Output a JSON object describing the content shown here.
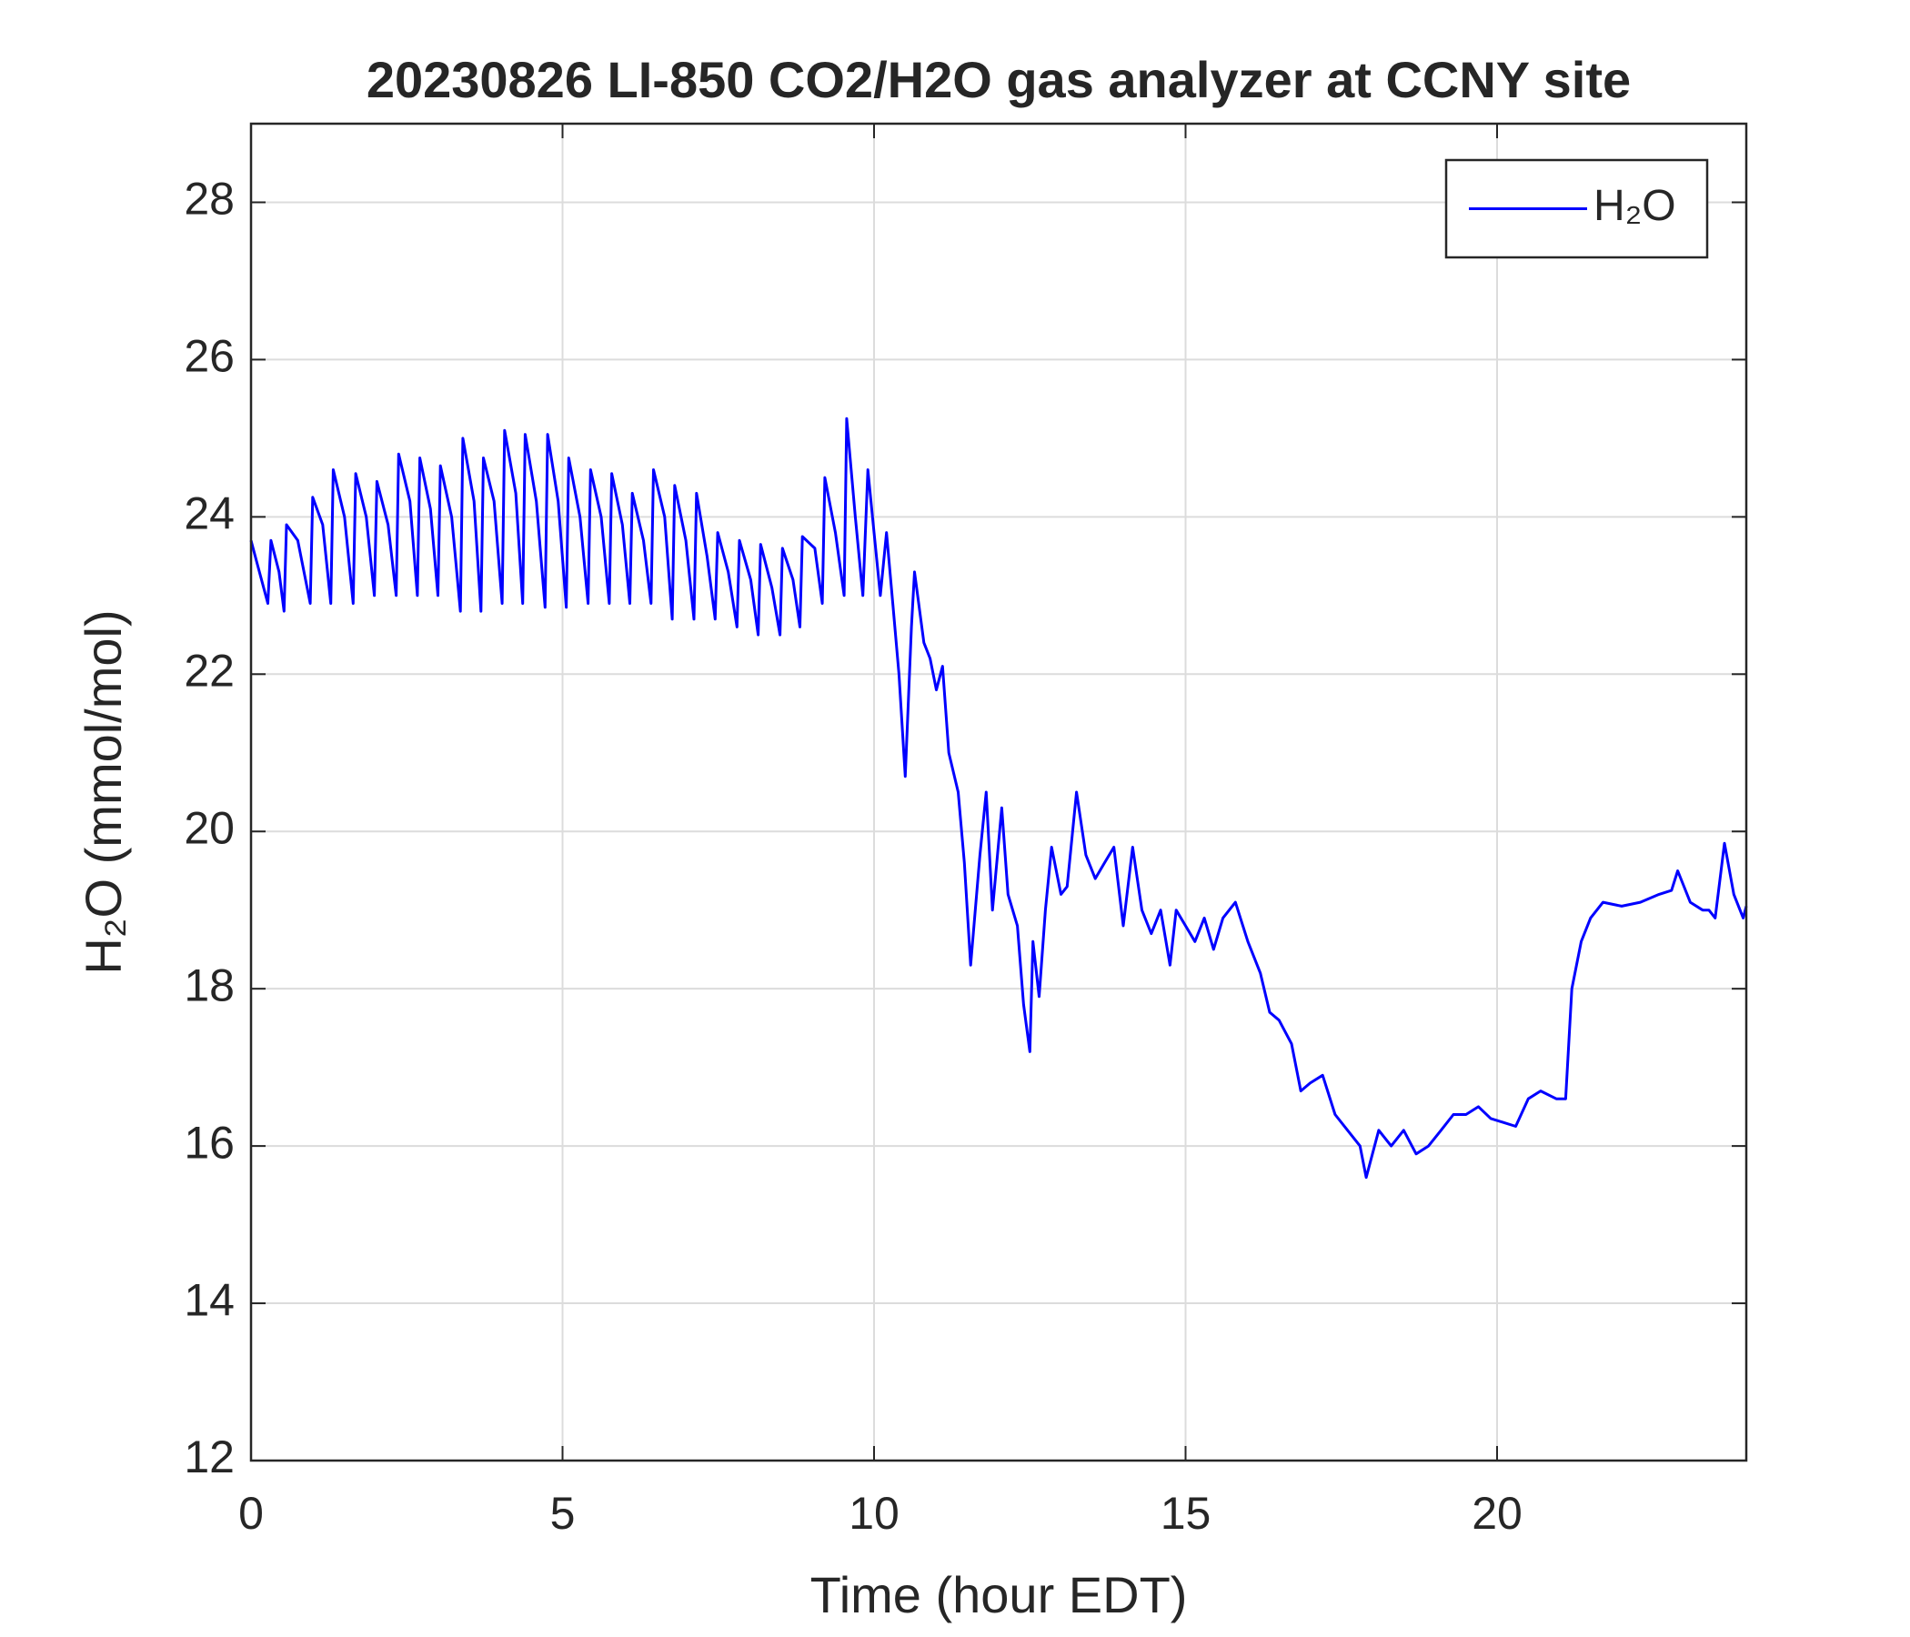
{
  "chart_data": {
    "type": "line",
    "title": "20230826 LI-850 CO2/H2O gas analyzer at CCNY site",
    "xlabel": "Time (hour EDT)",
    "ylabel": "H₂O (mmol/mol)",
    "xlim": [
      0,
      24
    ],
    "ylim": [
      12,
      29
    ],
    "xticks": [
      0,
      5,
      10,
      15,
      20
    ],
    "yticks": [
      12,
      14,
      16,
      18,
      20,
      22,
      24,
      26,
      28
    ],
    "grid": true,
    "legend": "upper right",
    "x": [
      0,
      0.1,
      0.27,
      0.32,
      0.45,
      0.53,
      0.57,
      0.75,
      0.95,
      0.99,
      1.15,
      1.28,
      1.32,
      1.5,
      1.64,
      1.68,
      1.85,
      1.98,
      2.02,
      2.2,
      2.33,
      2.37,
      2.55,
      2.67,
      2.71,
      2.88,
      3.0,
      3.04,
      3.22,
      3.36,
      3.4,
      3.58,
      3.69,
      3.73,
      3.9,
      4.03,
      4.07,
      4.25,
      4.36,
      4.4,
      4.58,
      4.72,
      4.76,
      4.93,
      5.06,
      5.1,
      5.28,
      5.41,
      5.45,
      5.62,
      5.75,
      5.79,
      5.96,
      6.08,
      6.12,
      6.3,
      6.42,
      6.46,
      6.64,
      6.76,
      6.8,
      6.98,
      7.11,
      7.15,
      7.32,
      7.45,
      7.49,
      7.66,
      7.8,
      7.84,
      8.02,
      8.14,
      8.18,
      8.36,
      8.49,
      8.53,
      8.7,
      8.81,
      8.85,
      9.05,
      9.17,
      9.21,
      9.38,
      9.52,
      9.56,
      9.7,
      9.82,
      9.9,
      10.0,
      10.1,
      10.2,
      10.3,
      10.4,
      10.5,
      10.6,
      10.65,
      10.8,
      10.9,
      11.0,
      11.1,
      11.2,
      11.35,
      11.45,
      11.55,
      11.7,
      11.8,
      11.9,
      12.05,
      12.15,
      12.3,
      12.4,
      12.5,
      12.55,
      12.65,
      12.75,
      12.85,
      13.0,
      13.1,
      13.25,
      13.4,
      13.55,
      13.7,
      13.85,
      14.0,
      14.15,
      14.3,
      14.45,
      14.6,
      14.75,
      14.85,
      15.0,
      15.15,
      15.3,
      15.45,
      15.6,
      15.8,
      16.0,
      16.2,
      16.35,
      16.5,
      16.7,
      16.85,
      17.0,
      17.2,
      17.4,
      17.6,
      17.8,
      17.9,
      18.1,
      18.3,
      18.5,
      18.7,
      18.9,
      19.1,
      19.3,
      19.5,
      19.7,
      19.9,
      20.1,
      20.3,
      20.5,
      20.7,
      20.95,
      21.1,
      21.2,
      21.35,
      21.5,
      21.7,
      22.0,
      22.3,
      22.6,
      22.8,
      22.9,
      23.1,
      23.3,
      23.4,
      23.5,
      23.65,
      23.8,
      23.95,
      24.0
    ],
    "series": [
      {
        "name": "H₂O",
        "color": "#0000ff",
        "values": [
          23.7,
          23.4,
          22.9,
          23.7,
          23.3,
          22.8,
          23.9,
          23.7,
          22.9,
          24.25,
          23.9,
          22.9,
          24.6,
          24.0,
          22.9,
          24.55,
          24.0,
          23.0,
          24.45,
          23.9,
          23.0,
          24.8,
          24.2,
          23.0,
          24.75,
          24.1,
          23.0,
          24.65,
          24.0,
          22.8,
          25.0,
          24.2,
          22.8,
          24.75,
          24.2,
          22.9,
          25.1,
          24.3,
          22.9,
          25.05,
          24.2,
          22.85,
          25.05,
          24.2,
          22.85,
          24.75,
          24.0,
          22.9,
          24.6,
          24.0,
          22.9,
          24.55,
          23.9,
          22.9,
          24.3,
          23.7,
          22.9,
          24.6,
          24.0,
          22.7,
          24.4,
          23.7,
          22.7,
          24.3,
          23.5,
          22.7,
          23.8,
          23.3,
          22.6,
          23.7,
          23.2,
          22.5,
          23.65,
          23.1,
          22.5,
          23.6,
          23.2,
          22.6,
          23.75,
          23.6,
          22.9,
          24.5,
          23.8,
          23.0,
          25.25,
          24.0,
          23.0,
          24.6,
          23.8,
          23.0,
          23.8,
          22.9,
          22.0,
          20.7,
          22.6,
          23.3,
          22.4,
          22.2,
          21.8,
          22.1,
          21.0,
          20.5,
          19.6,
          18.3,
          19.7,
          20.5,
          19.0,
          20.3,
          19.2,
          18.8,
          17.8,
          17.2,
          18.6,
          17.9,
          19.0,
          19.8,
          19.2,
          19.3,
          20.5,
          19.7,
          19.4,
          19.6,
          19.8,
          18.8,
          19.8,
          19.0,
          18.7,
          19.0,
          18.3,
          19.0,
          18.8,
          18.6,
          18.9,
          18.5,
          18.9,
          19.1,
          18.6,
          18.2,
          17.7,
          17.6,
          17.3,
          16.7,
          16.8,
          16.9,
          16.4,
          16.2,
          16.0,
          15.6,
          16.2,
          16.0,
          16.2,
          15.9,
          16.0,
          16.2,
          16.4,
          16.4,
          16.5,
          16.35,
          16.3,
          16.25,
          16.6,
          16.7,
          16.6,
          16.6,
          18.0,
          18.6,
          18.9,
          19.1,
          19.05,
          19.1,
          19.2,
          19.25,
          19.5,
          19.1,
          19.0,
          19.0,
          18.9,
          19.85,
          19.2,
          18.9,
          19.05
        ]
      }
    ]
  }
}
